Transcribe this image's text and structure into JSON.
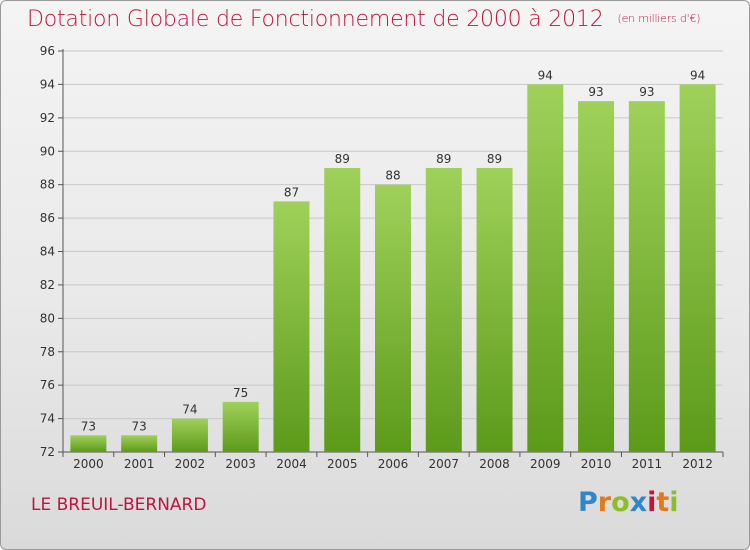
{
  "title": "Dotation Globale de Fonctionnement de 2000 à 2012",
  "subtitle": "(en milliers d'€)",
  "commune": "LE BREUIL-BERNARD",
  "logo": {
    "text": "Proxiti"
  },
  "colors": {
    "title": "#c0143c",
    "bar_top": "#9fd15a",
    "bar_bottom": "#5c9a1a",
    "grid": "#c8c8c8",
    "logo": [
      "#2f86c8",
      "#e07a1a",
      "#8abf2a",
      "#2f86c8",
      "#c0143c",
      "#e07a1a",
      "#8abf2a"
    ]
  },
  "chart_data": {
    "type": "bar",
    "categories": [
      "2000",
      "2001",
      "2002",
      "2003",
      "2004",
      "2005",
      "2006",
      "2007",
      "2008",
      "2009",
      "2010",
      "2011",
      "2012"
    ],
    "values": [
      73,
      73,
      74,
      75,
      87,
      89,
      88,
      89,
      89,
      94,
      93,
      93,
      94
    ],
    "data_labels": [
      "73",
      "73",
      "74",
      "75",
      "87",
      "89",
      "88",
      "89",
      "89",
      "94",
      "93",
      "93",
      "94"
    ],
    "ylim": [
      72,
      96
    ],
    "yticks": [
      72,
      74,
      76,
      78,
      80,
      82,
      84,
      86,
      88,
      90,
      92,
      94,
      96
    ],
    "ytick_labels": [
      "72",
      "74",
      "76",
      "78",
      "80",
      "82",
      "84",
      "86",
      "88",
      "90",
      "92",
      "94",
      "96"
    ],
    "grid": true,
    "xlabel": "",
    "ylabel": ""
  }
}
